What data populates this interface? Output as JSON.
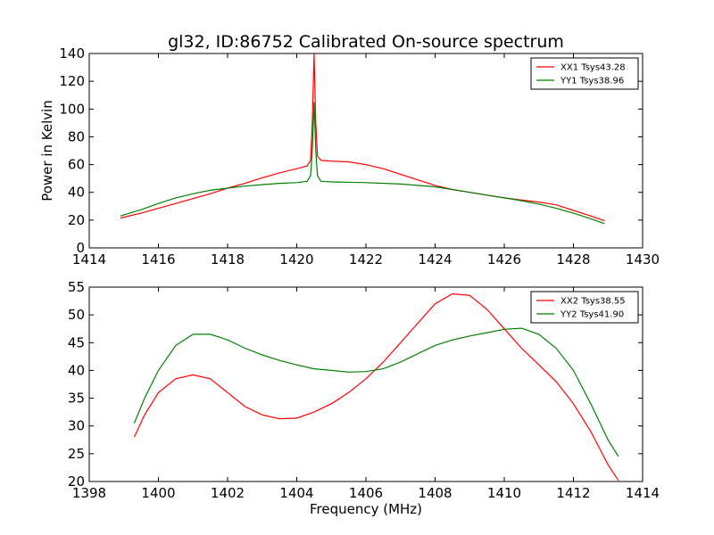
{
  "figure": {
    "title": "gl32, ID:86752 Calibrated On-source spectrum",
    "xlabel": "Frequency (MHz)"
  },
  "chart_data": [
    {
      "type": "line",
      "title": "gl32, ID:86752 Calibrated On-source spectrum",
      "xlabel": "",
      "ylabel": "Power in Kelvin",
      "xlim": [
        1414,
        1430
      ],
      "ylim": [
        0,
        140
      ],
      "xticks": [
        "1414",
        "1416",
        "1418",
        "1420",
        "1422",
        "1424",
        "1426",
        "1428",
        "1430"
      ],
      "yticks": [
        "0",
        "20",
        "40",
        "60",
        "80",
        "100",
        "120",
        "140"
      ],
      "legend_position": "top-right",
      "grid": false,
      "series": [
        {
          "name": "XX1 Tsys43.28",
          "color": "#ff0000",
          "points": [
            [
              1414.9,
              21.5
            ],
            [
              1415.5,
              25
            ],
            [
              1416,
              28.5
            ],
            [
              1416.5,
              32
            ],
            [
              1417,
              35.5
            ],
            [
              1417.5,
              39
            ],
            [
              1418,
              43
            ],
            [
              1418.5,
              46.5
            ],
            [
              1419,
              50.5
            ],
            [
              1419.5,
              54
            ],
            [
              1420,
              57
            ],
            [
              1420.3,
              59
            ],
            [
              1420.4,
              63
            ],
            [
              1420.45,
              90
            ],
            [
              1420.5,
              140
            ],
            [
              1420.55,
              90
            ],
            [
              1420.6,
              66
            ],
            [
              1420.7,
              63
            ],
            [
              1421,
              62.5
            ],
            [
              1421.5,
              62
            ],
            [
              1422,
              60
            ],
            [
              1422.5,
              57
            ],
            [
              1423,
              53
            ],
            [
              1423.5,
              49
            ],
            [
              1424,
              45
            ],
            [
              1424.5,
              42
            ],
            [
              1425,
              40
            ],
            [
              1425.5,
              38
            ],
            [
              1426,
              36
            ],
            [
              1426.5,
              34.5
            ],
            [
              1427,
              33
            ],
            [
              1427.5,
              31
            ],
            [
              1428,
              27
            ],
            [
              1428.5,
              23
            ],
            [
              1428.9,
              19.5
            ]
          ]
        },
        {
          "name": "YY1 Tsys38.96",
          "color": "#008000",
          "points": [
            [
              1414.9,
              23
            ],
            [
              1415.5,
              27.5
            ],
            [
              1416,
              32
            ],
            [
              1416.5,
              36
            ],
            [
              1417,
              39
            ],
            [
              1417.5,
              41.5
            ],
            [
              1418,
              43
            ],
            [
              1418.5,
              44.5
            ],
            [
              1419,
              45.5
            ],
            [
              1419.5,
              46.5
            ],
            [
              1420,
              47
            ],
            [
              1420.3,
              48
            ],
            [
              1420.4,
              52
            ],
            [
              1420.45,
              70
            ],
            [
              1420.5,
              105
            ],
            [
              1420.55,
              70
            ],
            [
              1420.6,
              52
            ],
            [
              1420.7,
              48
            ],
            [
              1421,
              47.5
            ],
            [
              1422,
              47
            ],
            [
              1423,
              46
            ],
            [
              1424,
              44
            ],
            [
              1424.5,
              42
            ],
            [
              1425,
              40
            ],
            [
              1425.5,
              38
            ],
            [
              1426,
              36
            ],
            [
              1426.5,
              34
            ],
            [
              1427,
              31.5
            ],
            [
              1427.5,
              28.5
            ],
            [
              1428,
              25
            ],
            [
              1428.5,
              21
            ],
            [
              1428.9,
              17.5
            ]
          ]
        }
      ]
    },
    {
      "type": "line",
      "title": "",
      "xlabel": "Frequency (MHz)",
      "ylabel": "",
      "xlim": [
        1398,
        1414
      ],
      "ylim": [
        20,
        55
      ],
      "xticks": [
        "1398",
        "1400",
        "1402",
        "1404",
        "1406",
        "1408",
        "1410",
        "1412",
        "1414"
      ],
      "yticks": [
        "20",
        "25",
        "30",
        "35",
        "40",
        "45",
        "50",
        "55"
      ],
      "legend_position": "top-right",
      "grid": false,
      "series": [
        {
          "name": "XX2 Tsys38.55",
          "color": "#ff0000",
          "points": [
            [
              1399.3,
              28
            ],
            [
              1399.6,
              32
            ],
            [
              1400,
              36
            ],
            [
              1400.5,
              38.5
            ],
            [
              1401,
              39.2
            ],
            [
              1401.5,
              38.5
            ],
            [
              1402,
              36
            ],
            [
              1402.5,
              33.5
            ],
            [
              1403,
              32
            ],
            [
              1403.5,
              31.3
            ],
            [
              1404,
              31.4
            ],
            [
              1404.5,
              32.5
            ],
            [
              1405,
              34
            ],
            [
              1405.5,
              36
            ],
            [
              1406,
              38.5
            ],
            [
              1406.5,
              41.5
            ],
            [
              1407,
              45
            ],
            [
              1407.5,
              48.5
            ],
            [
              1408,
              52
            ],
            [
              1408.5,
              53.8
            ],
            [
              1409,
              53.5
            ],
            [
              1409.5,
              51
            ],
            [
              1410,
              47.5
            ],
            [
              1410.5,
              44
            ],
            [
              1411,
              41
            ],
            [
              1411.5,
              38
            ],
            [
              1412,
              34
            ],
            [
              1412.5,
              29
            ],
            [
              1413,
              23
            ],
            [
              1413.3,
              20.2
            ]
          ]
        },
        {
          "name": "YY2 Tsys41.90",
          "color": "#008000",
          "points": [
            [
              1399.3,
              30.5
            ],
            [
              1399.6,
              35
            ],
            [
              1400,
              40
            ],
            [
              1400.5,
              44.5
            ],
            [
              1401,
              46.5
            ],
            [
              1401.5,
              46.5
            ],
            [
              1402,
              45.5
            ],
            [
              1402.5,
              44
            ],
            [
              1403,
              42.8
            ],
            [
              1403.5,
              41.8
            ],
            [
              1404,
              41
            ],
            [
              1404.5,
              40.3
            ],
            [
              1405,
              40
            ],
            [
              1405.5,
              39.7
            ],
            [
              1406,
              39.8
            ],
            [
              1406.5,
              40.3
            ],
            [
              1407,
              41.5
            ],
            [
              1407.5,
              43
            ],
            [
              1408,
              44.5
            ],
            [
              1408.5,
              45.5
            ],
            [
              1409,
              46.2
            ],
            [
              1409.5,
              46.8
            ],
            [
              1410,
              47.4
            ],
            [
              1410.5,
              47.6
            ],
            [
              1411,
              46.5
            ],
            [
              1411.5,
              44
            ],
            [
              1412,
              40
            ],
            [
              1412.5,
              34
            ],
            [
              1413,
              27.5
            ],
            [
              1413.3,
              24.5
            ]
          ]
        }
      ]
    }
  ]
}
